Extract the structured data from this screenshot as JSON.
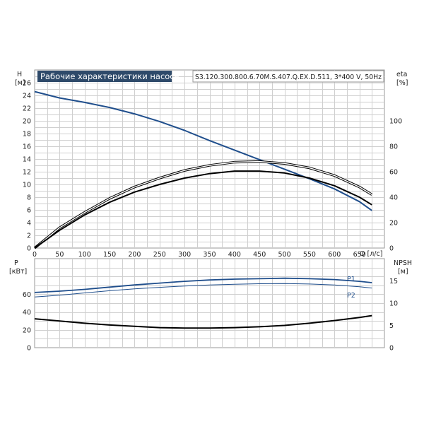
{
  "title": "Рабочие характеристики насоса",
  "model": "S3.120.300.800.6.70M.S.407.Q.EX.D.511, 3*400 V, 50Hz",
  "colors": {
    "blue": "#1f4e8c",
    "black": "#000000",
    "title_bg": "#2e4a6a",
    "grid": "#cfcfcf"
  },
  "chart_data": [
    {
      "type": "line",
      "panel": "top",
      "x_label": "Q [л/с]",
      "x_ticks": [
        0,
        50,
        100,
        150,
        200,
        250,
        300,
        350,
        400,
        450,
        500,
        550,
        600,
        650
      ],
      "xlim": [
        0,
        700
      ],
      "y_left": {
        "label": "H",
        "unit": "[м]",
        "ticks": [
          0,
          2,
          4,
          6,
          8,
          10,
          12,
          14,
          16,
          18,
          20,
          22,
          24,
          26
        ],
        "lim": [
          0,
          28
        ]
      },
      "y_right": {
        "label": "eta",
        "unit": "[%]",
        "ticks": [
          0,
          20,
          40,
          60,
          80,
          100
        ],
        "lim": [
          0,
          140
        ]
      },
      "grid": true,
      "series": [
        {
          "axis": "left",
          "color": "#1f4e8c",
          "points": [
            [
              0,
              24.6
            ],
            [
              50,
              23.6
            ],
            [
              100,
              22.9
            ],
            [
              150,
              22.1
            ],
            [
              200,
              21.1
            ],
            [
              250,
              19.9
            ],
            [
              300,
              18.5
            ],
            [
              350,
              16.9
            ],
            [
              400,
              15.4
            ],
            [
              450,
              13.9
            ],
            [
              500,
              12.4
            ],
            [
              550,
              10.9
            ],
            [
              600,
              9.3
            ],
            [
              650,
              7.3
            ],
            [
              675,
              5.9
            ]
          ]
        },
        {
          "axis": "right",
          "color": "#000000",
          "outline": true,
          "points": [
            [
              0,
              0
            ],
            [
              50,
              16
            ],
            [
              100,
              28
            ],
            [
              150,
              39
            ],
            [
              200,
              48
            ],
            [
              250,
              55
            ],
            [
              300,
              61
            ],
            [
              350,
              65
            ],
            [
              400,
              67.5
            ],
            [
              450,
              68
            ],
            [
              500,
              66.5
            ],
            [
              550,
              63
            ],
            [
              600,
              57
            ],
            [
              650,
              48
            ],
            [
              675,
              42
            ]
          ]
        },
        {
          "axis": "right",
          "color": "#000000",
          "points": [
            [
              0,
              0
            ],
            [
              50,
              14
            ],
            [
              100,
              26
            ],
            [
              150,
              36
            ],
            [
              200,
              44
            ],
            [
              250,
              50
            ],
            [
              300,
              55
            ],
            [
              350,
              58.5
            ],
            [
              400,
              60.5
            ],
            [
              450,
              60.5
            ],
            [
              500,
              59
            ],
            [
              550,
              55
            ],
            [
              600,
              49
            ],
            [
              650,
              40
            ],
            [
              675,
              34
            ]
          ]
        }
      ]
    },
    {
      "type": "line",
      "panel": "bottom",
      "xlim": [
        0,
        700
      ],
      "y_left": {
        "label": "P",
        "unit": "[кВт]",
        "ticks": [
          0,
          20,
          40,
          60
        ],
        "lim": [
          0,
          100
        ]
      },
      "y_right": {
        "label": "NPSH",
        "unit": "[м]",
        "ticks": [
          0,
          5,
          10,
          15
        ],
        "lim": [
          0,
          20
        ]
      },
      "grid": true,
      "series": [
        {
          "name": "P1",
          "axis": "left",
          "color": "#1f4e8c",
          "width": 1.8,
          "points": [
            [
              0,
              62
            ],
            [
              50,
              63.5
            ],
            [
              100,
              65.5
            ],
            [
              150,
              68
            ],
            [
              200,
              70.5
            ],
            [
              250,
              72.5
            ],
            [
              300,
              74.5
            ],
            [
              350,
              76
            ],
            [
              400,
              77
            ],
            [
              450,
              77.5
            ],
            [
              500,
              78
            ],
            [
              550,
              77.5
            ],
            [
              600,
              76.5
            ],
            [
              650,
              74.5
            ],
            [
              675,
              73
            ]
          ]
        },
        {
          "name": "P2",
          "axis": "left",
          "color": "#1f4e8c",
          "width": 1.0,
          "points": [
            [
              0,
              57
            ],
            [
              50,
              59
            ],
            [
              100,
              61.5
            ],
            [
              150,
              64
            ],
            [
              200,
              66
            ],
            [
              250,
              67.8
            ],
            [
              300,
              69.3
            ],
            [
              350,
              70.5
            ],
            [
              400,
              71.3
            ],
            [
              450,
              71.8
            ],
            [
              500,
              72
            ],
            [
              550,
              71.5
            ],
            [
              600,
              70.5
            ],
            [
              650,
              68.5
            ],
            [
              675,
              67
            ]
          ]
        },
        {
          "axis": "right",
          "color": "#000000",
          "width": 2.0,
          "points": [
            [
              0,
              6.5
            ],
            [
              50,
              6
            ],
            [
              100,
              5.5
            ],
            [
              150,
              5.1
            ],
            [
              200,
              4.8
            ],
            [
              250,
              4.5
            ],
            [
              300,
              4.4
            ],
            [
              350,
              4.4
            ],
            [
              400,
              4.5
            ],
            [
              450,
              4.7
            ],
            [
              500,
              5
            ],
            [
              550,
              5.5
            ],
            [
              600,
              6.1
            ],
            [
              650,
              6.8
            ],
            [
              675,
              7.2
            ]
          ]
        }
      ]
    }
  ]
}
